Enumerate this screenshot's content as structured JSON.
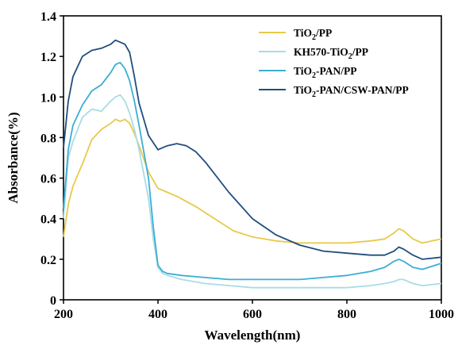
{
  "chart_data": {
    "type": "line",
    "title": "",
    "xlabel": "Wavelength(nm)",
    "ylabel": "Absorbance(%)",
    "xlim": [
      200,
      1000
    ],
    "ylim": [
      0,
      1.4
    ],
    "xticks": [
      200,
      400,
      600,
      800,
      1000
    ],
    "yticks": [
      0,
      0.2,
      0.4,
      0.6,
      0.8,
      1.0,
      1.2,
      1.4
    ],
    "xtick_labels": [
      "200",
      "400",
      "600",
      "800",
      "1000"
    ],
    "ytick_labels": [
      "0",
      "0.2",
      "0.4",
      "0.6",
      "0.8",
      "1.0",
      "1.2",
      "1.4"
    ],
    "grid": false,
    "legend_position": "top-right",
    "series": [
      {
        "name_parts": [
          "TiO",
          "2",
          "/PP"
        ],
        "color": "#E8C94A",
        "x": [
          200,
          210,
          220,
          240,
          260,
          280,
          300,
          310,
          320,
          330,
          340,
          350,
          360,
          380,
          400,
          420,
          440,
          480,
          520,
          560,
          600,
          650,
          700,
          750,
          800,
          850,
          880,
          900,
          910,
          920,
          940,
          960,
          1000
        ],
        "y": [
          0.31,
          0.47,
          0.56,
          0.67,
          0.79,
          0.84,
          0.87,
          0.89,
          0.88,
          0.89,
          0.87,
          0.82,
          0.76,
          0.63,
          0.55,
          0.53,
          0.51,
          0.46,
          0.4,
          0.34,
          0.31,
          0.29,
          0.28,
          0.28,
          0.28,
          0.29,
          0.3,
          0.33,
          0.35,
          0.34,
          0.3,
          0.28,
          0.3
        ]
      },
      {
        "name_parts": [
          "KH570-TiO",
          "2",
          "/PP"
        ],
        "color": "#A8DCE6",
        "x": [
          200,
          210,
          220,
          240,
          260,
          280,
          300,
          310,
          320,
          330,
          340,
          350,
          360,
          380,
          390,
          400,
          410,
          420,
          450,
          500,
          550,
          600,
          650,
          700,
          750,
          800,
          850,
          880,
          900,
          910,
          920,
          940,
          960,
          1000
        ],
        "y": [
          0.4,
          0.7,
          0.78,
          0.9,
          0.94,
          0.93,
          0.98,
          1.0,
          1.01,
          0.98,
          0.92,
          0.84,
          0.74,
          0.5,
          0.3,
          0.16,
          0.13,
          0.12,
          0.1,
          0.08,
          0.07,
          0.06,
          0.06,
          0.06,
          0.06,
          0.06,
          0.07,
          0.08,
          0.09,
          0.1,
          0.1,
          0.08,
          0.07,
          0.08
        ]
      },
      {
        "name_parts": [
          "TiO",
          "2",
          "-PAN/PP"
        ],
        "color": "#3BAED4",
        "x": [
          200,
          210,
          220,
          240,
          260,
          280,
          300,
          310,
          320,
          330,
          340,
          350,
          360,
          380,
          390,
          400,
          410,
          420,
          450,
          500,
          550,
          600,
          650,
          700,
          750,
          800,
          850,
          880,
          900,
          910,
          920,
          940,
          960,
          1000
        ],
        "y": [
          0.45,
          0.74,
          0.86,
          0.96,
          1.03,
          1.06,
          1.12,
          1.16,
          1.17,
          1.14,
          1.08,
          0.98,
          0.86,
          0.6,
          0.36,
          0.17,
          0.14,
          0.13,
          0.12,
          0.11,
          0.1,
          0.1,
          0.1,
          0.1,
          0.11,
          0.12,
          0.14,
          0.16,
          0.19,
          0.2,
          0.19,
          0.16,
          0.15,
          0.18
        ]
      },
      {
        "name_parts": [
          "TiO",
          "2",
          "-PAN/CSW-PAN/PP"
        ],
        "color": "#1F4E7F",
        "x": [
          200,
          210,
          220,
          240,
          260,
          280,
          300,
          310,
          320,
          330,
          340,
          350,
          360,
          380,
          400,
          410,
          420,
          440,
          460,
          480,
          500,
          550,
          600,
          650,
          700,
          750,
          800,
          850,
          880,
          900,
          910,
          920,
          940,
          960,
          1000
        ],
        "y": [
          0.75,
          0.98,
          1.1,
          1.2,
          1.23,
          1.24,
          1.26,
          1.28,
          1.27,
          1.26,
          1.22,
          1.1,
          0.97,
          0.81,
          0.74,
          0.75,
          0.76,
          0.77,
          0.76,
          0.73,
          0.68,
          0.53,
          0.4,
          0.32,
          0.27,
          0.24,
          0.23,
          0.22,
          0.22,
          0.24,
          0.26,
          0.25,
          0.22,
          0.2,
          0.21
        ]
      }
    ]
  }
}
